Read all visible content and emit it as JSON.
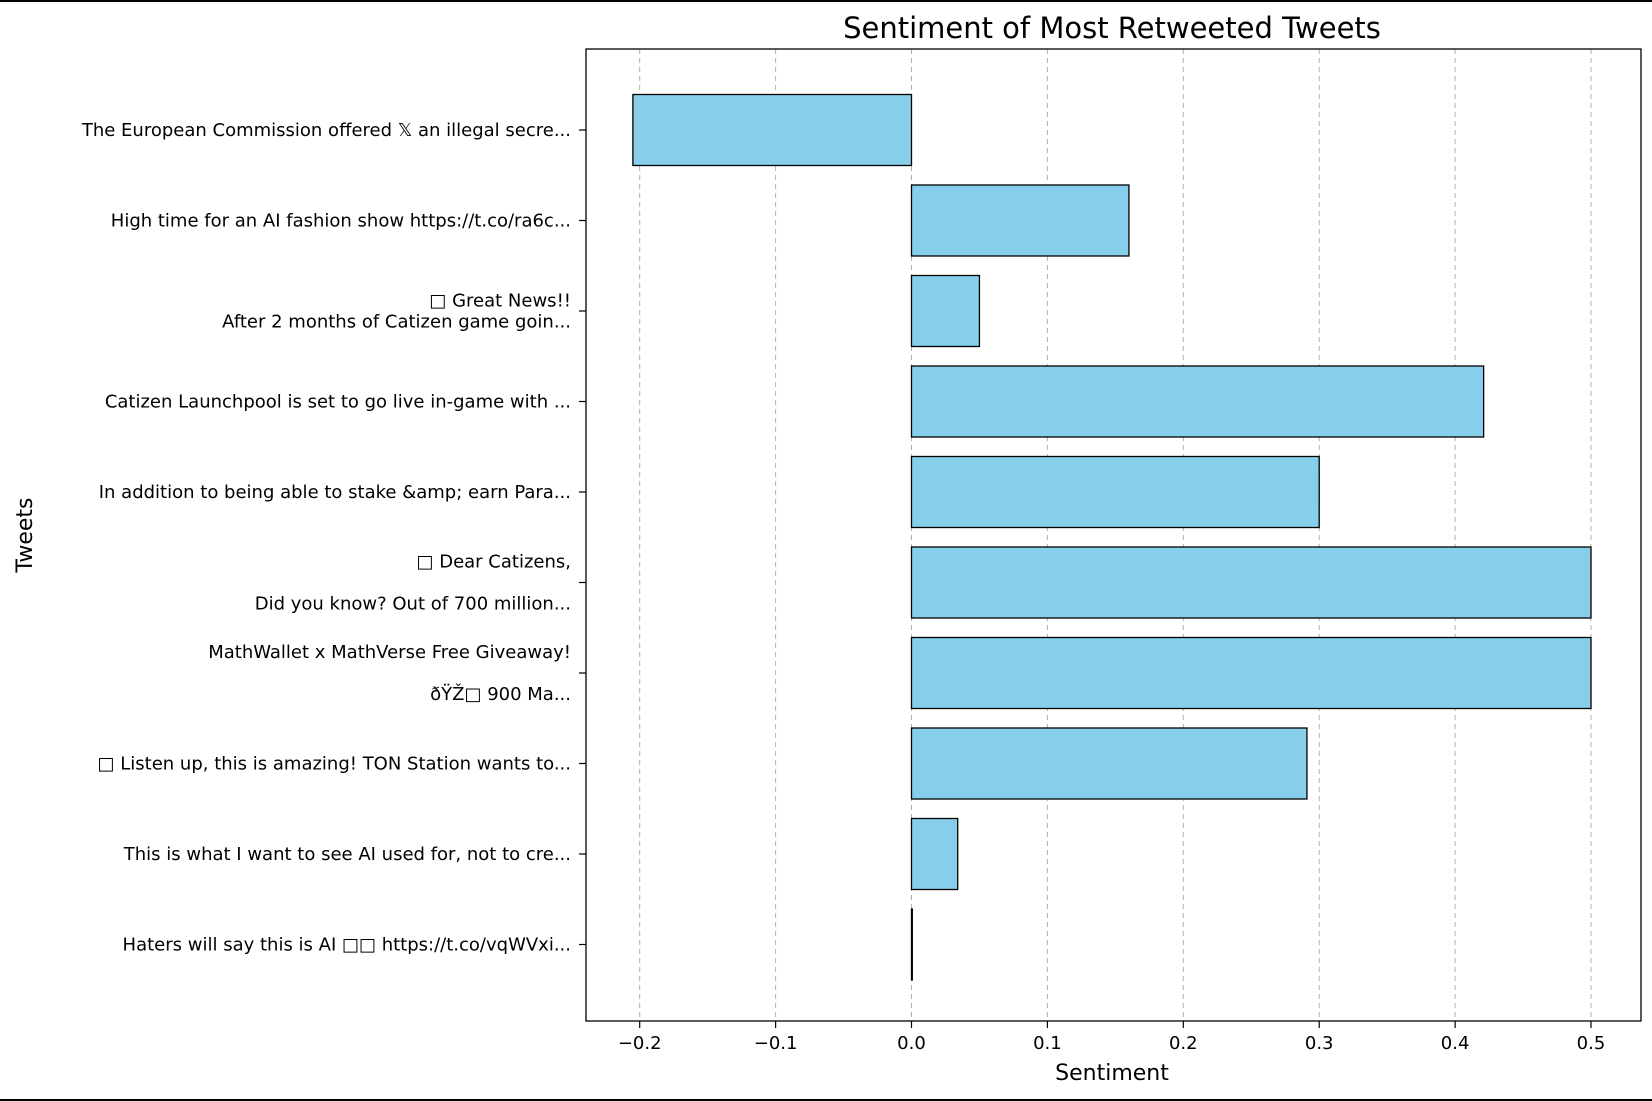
{
  "chart_data": {
    "type": "bar",
    "orientation": "horizontal",
    "title": "Sentiment of Most Retweeted Tweets",
    "xlabel": "Sentiment",
    "ylabel": "Tweets",
    "xlim": [
      -0.24,
      0.535
    ],
    "x_ticks": [
      -0.2,
      -0.1,
      0.0,
      0.1,
      0.2,
      0.3,
      0.4,
      0.5
    ],
    "x_tick_labels": [
      "−0.2",
      "−0.1",
      "0.0",
      "0.1",
      "0.2",
      "0.3",
      "0.4",
      "0.5"
    ],
    "grid": "x-dashed",
    "bar_color": "#87ceeb",
    "edge_color": "#000000",
    "categories": [
      [
        "The European Commission offered 𝕏 an illegal secre..."
      ],
      [
        "High time for an AI fashion show https://t.co/ra6c..."
      ],
      [
        "□ Great News!!",
        "After 2 months of Catizen game goin..."
      ],
      [
        "Catizen Launchpool is set to go live in-game with ..."
      ],
      [
        "In addition to being able to stake &amp; earn Para..."
      ],
      [
        "□ Dear Catizens,",
        "",
        "Did you know? Out of 700 million..."
      ],
      [
        "MathWallet x MathVerse Free Giveaway!",
        "",
        "ðŸŽ□ 900 Ma..."
      ],
      [
        "□ Listen up, this is amazing! TON Station wants to..."
      ],
      [
        "This is what I want to see AI used for, not to cre..."
      ],
      [
        "Haters will say this is AI  □□ https://t.co/vqWVxi..."
      ]
    ],
    "values": [
      -0.205,
      0.16,
      0.05,
      0.421,
      0.3,
      0.5,
      0.5,
      0.291,
      0.034,
      0.0
    ]
  }
}
